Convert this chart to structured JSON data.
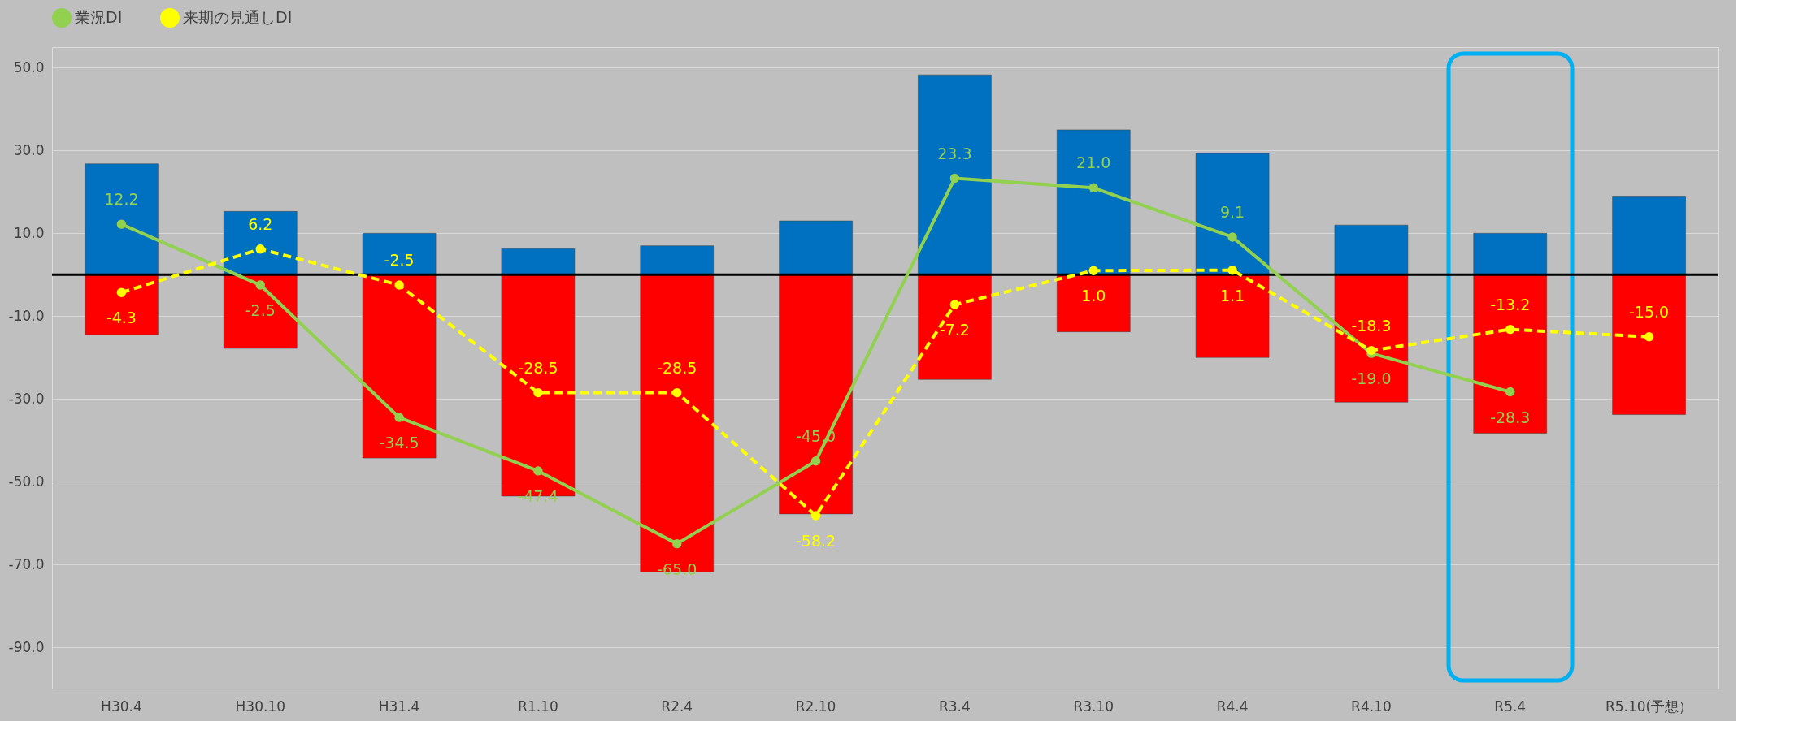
{
  "chart_data": {
    "type": "bar",
    "stacked": true,
    "categories": [
      "H30.4",
      "H30.10",
      "H31.4",
      "R1.10",
      "R2.4",
      "R2.10",
      "R3.4",
      "R3.10",
      "R4.4",
      "R4.10",
      "R5.4",
      "R5.10(予想）"
    ],
    "series": [
      {
        "type": "bar",
        "color": "#0070c0",
        "values": [
          26.8,
          15.3,
          10.0,
          6.3,
          7.0,
          13.0,
          48.3,
          35.0,
          29.3,
          12.0,
          10.0,
          19.0
        ]
      },
      {
        "type": "bar",
        "color": "#ff0000",
        "values": [
          -14.5,
          -17.8,
          -44.3,
          -53.5,
          -71.8,
          -57.8,
          -25.3,
          -13.8,
          -20.0,
          -30.8,
          -38.3,
          -33.8
        ]
      },
      {
        "type": "line",
        "name": "業況DI",
        "color": "#92d050",
        "marker": "circle",
        "line_style": "solid",
        "values": [
          12.2,
          -2.5,
          -34.5,
          -47.4,
          -65.0,
          -45.0,
          23.3,
          21.0,
          9.1,
          -19.0,
          -28.3,
          null
        ],
        "value_labels": [
          "12.2",
          "-2.5",
          "-34.5",
          "-47.4",
          "-65.0",
          "-45.0",
          "23.3",
          "21.0",
          "9.1",
          "-19.0",
          "-28.3",
          null
        ]
      },
      {
        "type": "line",
        "name": "来期の見通しDI",
        "color": "#ffff00",
        "marker": "circle",
        "line_style": "dashed",
        "values": [
          -4.3,
          6.2,
          -2.5,
          -28.5,
          -28.5,
          -58.2,
          -7.2,
          1.0,
          1.1,
          -18.3,
          -13.2,
          -15.0
        ],
        "value_labels": [
          "-4.3",
          "6.2",
          "-2.5",
          "-28.5",
          "-28.5",
          "-58.2",
          "-7.2",
          "1.0",
          "1.1",
          "-18.3",
          "-13.2",
          "-15.0"
        ]
      }
    ],
    "ylim": [
      -100,
      55
    ],
    "yticks": [
      {
        "value": -90,
        "label": "-90.0"
      },
      {
        "value": -70,
        "label": "-70.0"
      },
      {
        "value": -50,
        "label": "-50.0"
      },
      {
        "value": -30,
        "label": "-30.0"
      },
      {
        "value": -10,
        "label": "-10.0"
      },
      {
        "value": 10,
        "label": "10.0"
      },
      {
        "value": 30,
        "label": "30.0"
      },
      {
        "value": 50,
        "label": "50.0"
      }
    ],
    "grid": "y",
    "legend": "top",
    "ref_lines": [
      {
        "axis": "y",
        "value": 0,
        "color": "#000000"
      }
    ]
  }
}
